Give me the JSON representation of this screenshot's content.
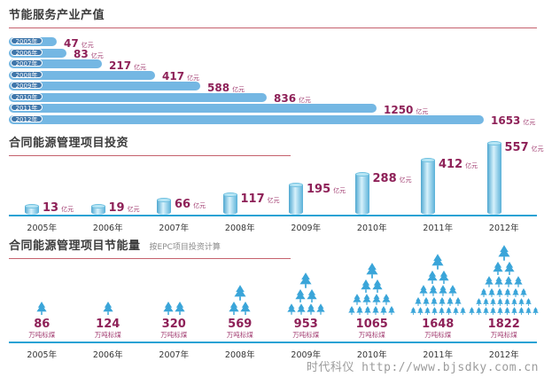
{
  "watermark": {
    "brand": "时代科仪",
    "url": "http://www.bjsdky.com.cn"
  },
  "colors": {
    "bar_blue": "#74b7e3",
    "pill_blue": "#4077ab",
    "baseline_blue": "#2aa2d4",
    "tree_blue": "#3aa5d9",
    "value_maroon": "#8e2158",
    "rule_red": "#c5616d",
    "title_gray": "#3c3c3c",
    "subtitle_gray": "#8a8a8a",
    "watermark_gray": "#9c9c9c"
  },
  "chart_data": [
    {
      "type": "bar",
      "orientation": "horizontal",
      "title": "节能服务产业产值",
      "categories": [
        "2005年",
        "2006年",
        "2007年",
        "2008年",
        "2009年",
        "2010年",
        "2011年",
        "2012年"
      ],
      "values": [
        47,
        83,
        217,
        417,
        588,
        836,
        1250,
        1653
      ],
      "unit": "亿元",
      "value_range": [
        0,
        1653
      ],
      "grid": false,
      "legend": "none",
      "bar_color": "#74b7e3",
      "label_color": "#8e2158"
    },
    {
      "type": "bar",
      "orientation": "vertical",
      "style": "cylinder",
      "title": "合同能源管理项目投资",
      "categories": [
        "2005年",
        "2006年",
        "2007年",
        "2008年",
        "2009年",
        "2010年",
        "2011年",
        "2012年"
      ],
      "values": [
        13,
        19,
        66,
        117,
        195,
        288,
        412,
        557
      ],
      "unit": "亿元",
      "value_range": [
        0,
        557
      ],
      "grid": false,
      "legend": "none",
      "bar_color": "#58b0d8",
      "label_color": "#8e2158"
    },
    {
      "type": "bar",
      "style": "tree-pictogram",
      "title": "合同能源管理项目节能量",
      "subtitle": "按EPC项目投资计算",
      "categories": [
        "2005年",
        "2006年",
        "2007年",
        "2008年",
        "2009年",
        "2010年",
        "2011年",
        "2012年"
      ],
      "values": [
        86,
        124,
        320,
        569,
        953,
        1065,
        1648,
        1822
      ],
      "unit": "万吨标煤",
      "tree_rows": [
        [
          1
        ],
        [
          1
        ],
        [
          2
        ],
        [
          1,
          2
        ],
        [
          1,
          2,
          4
        ],
        [
          1,
          2,
          4,
          6
        ],
        [
          1,
          2,
          4,
          6,
          8
        ],
        [
          1,
          2,
          4,
          6,
          8,
          10
        ]
      ],
      "grid": false,
      "legend": "none",
      "icon_color": "#3aa5d9",
      "label_color": "#8e2158"
    }
  ]
}
